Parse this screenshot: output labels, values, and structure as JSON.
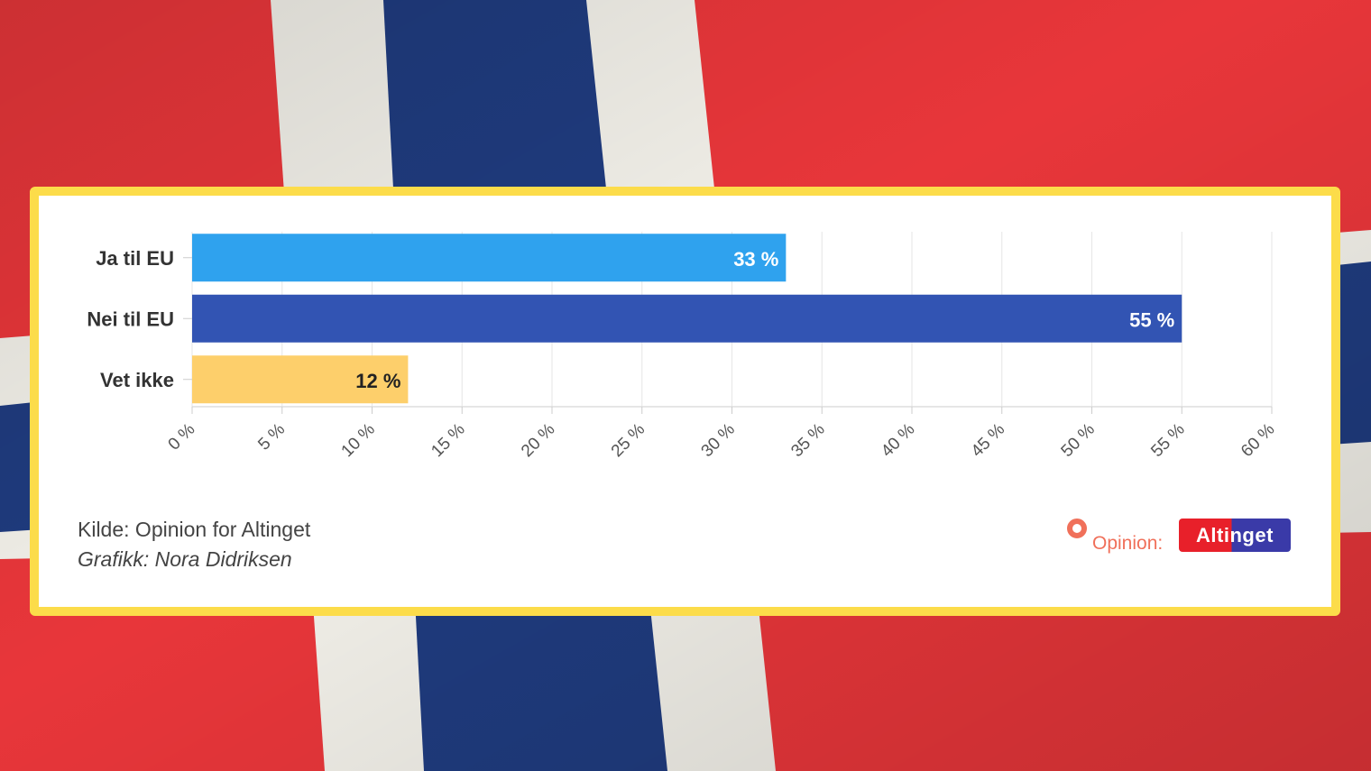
{
  "colors": {
    "flag_red": "#e8363a",
    "flag_white": "#f1efe8",
    "flag_blue": "#1f3b7e",
    "card_border": "#fcdc4a",
    "grid": "#e6e6e6"
  },
  "chart_data": {
    "type": "bar",
    "orientation": "horizontal",
    "categories": [
      "Ja til EU",
      "Nei til EU",
      "Vet ikke"
    ],
    "values": [
      33,
      55,
      12
    ],
    "data_labels": [
      "33 %",
      "55 %",
      "12 %"
    ],
    "bar_colors": [
      "#2fa2ee",
      "#3254b3",
      "#fdcf6b"
    ],
    "data_label_colors": [
      "#ffffff",
      "#ffffff",
      "#222222"
    ],
    "xlim": [
      0,
      60
    ],
    "x_ticks": [
      0,
      5,
      10,
      15,
      20,
      25,
      30,
      35,
      40,
      45,
      50,
      55,
      60
    ],
    "x_tick_labels": [
      "0 %",
      "5 %",
      "10 %",
      "15 %",
      "20 %",
      "25 %",
      "30 %",
      "35 %",
      "40 %",
      "45 %",
      "50 %",
      "55 %",
      "60 %"
    ],
    "grid": true,
    "legend": "none"
  },
  "footer": {
    "source": "Kilde: Opinion for Altinget",
    "credit": "Grafikk: Nora Didriksen"
  },
  "logos": {
    "opinion": "Opinion:",
    "altinget": "Altinget"
  }
}
